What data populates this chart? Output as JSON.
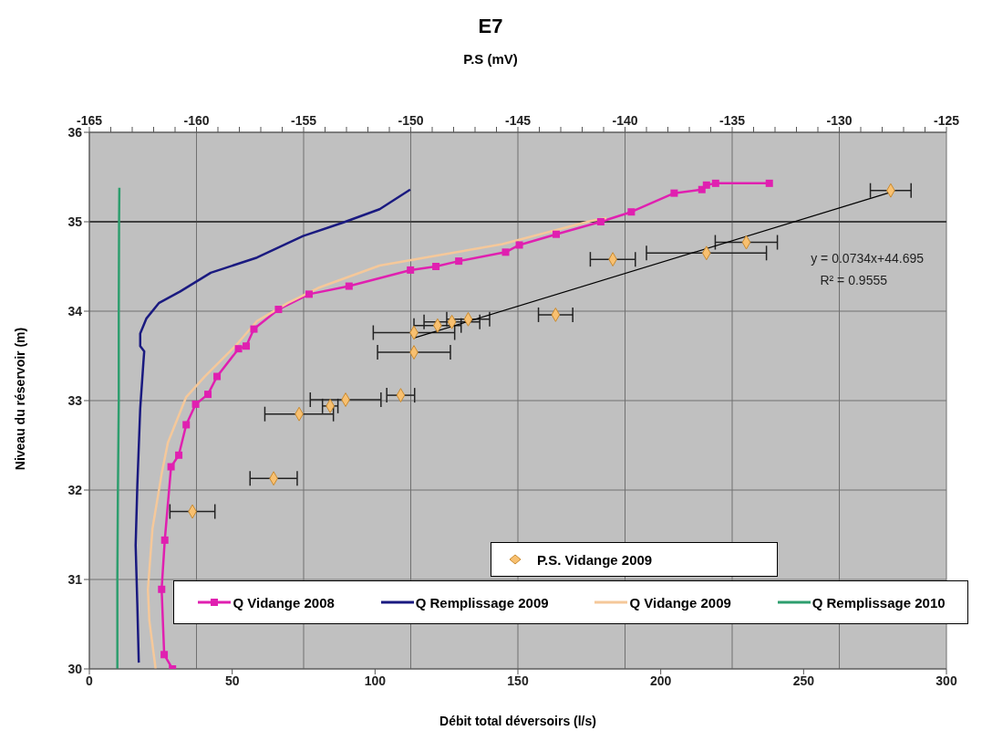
{
  "chart_data": {
    "type": "line",
    "title": "E7",
    "x2label": "P.S (mV)",
    "xlabel": "Débit total déversoirs (l/s)",
    "ylabel": "Niveau du réservoir (m)",
    "xlim": [
      0,
      300
    ],
    "xticks": [
      0,
      50,
      100,
      150,
      200,
      250,
      300
    ],
    "x2lim": [
      -165,
      -125
    ],
    "x2ticks": [
      -165,
      {
        "value": -164,
        "label": null
      },
      {
        "value": -163,
        "label": null
      },
      {
        "value": -162,
        "label": null
      },
      {
        "value": -161,
        "label": null
      },
      -160,
      {
        "value": -159,
        "label": null
      },
      {
        "value": -158,
        "label": null
      },
      {
        "value": -157,
        "label": null
      },
      {
        "value": -156,
        "label": null
      },
      -155,
      {
        "value": -154,
        "label": null
      },
      {
        "value": -153,
        "label": null
      },
      {
        "value": -152,
        "label": null
      },
      {
        "value": -151,
        "label": null
      },
      -150,
      {
        "value": -149,
        "label": null
      },
      {
        "value": -148,
        "label": null
      },
      {
        "value": -147,
        "label": null
      },
      {
        "value": -146,
        "label": null
      },
      -145,
      {
        "value": -144,
        "label": null
      },
      {
        "value": -143,
        "label": null
      },
      {
        "value": -142,
        "label": null
      },
      {
        "value": -141,
        "label": null
      },
      -140,
      {
        "value": -139,
        "label": null
      },
      {
        "value": -138,
        "label": null
      },
      {
        "value": -137,
        "label": null
      },
      {
        "value": -136,
        "label": null
      },
      -135,
      {
        "value": -134,
        "label": null
      },
      {
        "value": -133,
        "label": null
      },
      {
        "value": -132,
        "label": null
      },
      {
        "value": -131,
        "label": null
      },
      -130,
      {
        "value": -129,
        "label": null
      },
      {
        "value": -128,
        "label": null
      },
      {
        "value": -127,
        "label": null
      },
      {
        "value": -126,
        "label": null
      },
      -125
    ],
    "ylim": [
      30,
      36
    ],
    "yticks": [
      30,
      31,
      32,
      33,
      34,
      35,
      36
    ],
    "grid": true,
    "legend": "bottom",
    "ref_lines": [
      {
        "axis": "y",
        "value": 35,
        "color": "#404040"
      }
    ],
    "series": [
      {
        "name": "Q Vidange 2008",
        "color": "#e020b0",
        "marker": "square",
        "x": [
          29.1,
          26.2,
          25.3,
          26.4,
          28.6,
          31.3,
          33.9,
          37.2,
          41.5,
          44.7,
          52.2,
          54.9,
          57.6,
          66.2,
          76.9,
          90.9,
          112.4,
          121.3,
          129.3,
          145.7,
          150.5,
          163.4,
          179,
          189.7,
          204.7,
          214.4,
          216,
          219.2,
          238
        ],
        "values": [
          30.0,
          30.16,
          30.89,
          31.44,
          32.26,
          32.39,
          32.73,
          32.96,
          33.07,
          33.27,
          33.58,
          33.61,
          33.8,
          34.02,
          34.19,
          34.28,
          34.46,
          34.5,
          34.56,
          34.66,
          34.74,
          34.86,
          35.0,
          35.11,
          35.32,
          35.36,
          35.41,
          35.43,
          35.43
        ]
      },
      {
        "name": "Q Remplissage 2009",
        "color": "#1a1a80",
        "marker": "none",
        "x": [
          17.3,
          16.8,
          16.2,
          16.8,
          17.8,
          18.9,
          19.2,
          17.8,
          17.8,
          20.0,
          24.3,
          31.8,
          42.5,
          58.7,
          74.8,
          88.7,
          101.6,
          112.3
        ],
        "values": [
          30.07,
          30.71,
          31.38,
          32.06,
          32.91,
          33.42,
          33.55,
          33.61,
          33.75,
          33.92,
          34.09,
          34.22,
          34.43,
          34.6,
          34.84,
          34.99,
          35.14,
          35.36
        ]
      },
      {
        "name": "Q Vidange 2009",
        "color": "#f5c89a",
        "marker": "none",
        "x": [
          23.2,
          21.0,
          20.5,
          22.1,
          25.3,
          27.5,
          33.9,
          40.4,
          51.1,
          58.7,
          69.4,
          80.1,
          101.6,
          123.1,
          144.6,
          175.7,
          181
        ],
        "values": [
          30.0,
          30.54,
          30.89,
          31.57,
          32.18,
          32.53,
          33.04,
          33.27,
          33.61,
          33.89,
          34.09,
          34.26,
          34.51,
          34.63,
          34.75,
          35.01,
          35.04
        ]
      },
      {
        "name": "Q Remplissage 2010",
        "color": "#2e9e6e",
        "marker": "none",
        "x": [
          9.8,
          9.8,
          10,
          10.3,
          10.3,
          10.4,
          10.5
        ],
        "values": [
          30,
          31,
          32,
          33,
          34,
          35,
          35.38
        ]
      },
      {
        "name": "P.S. Vidange 2009",
        "type": "scatter",
        "axis": "x2",
        "color": "#f8c070",
        "marker": "diamond",
        "x": [
          -149.85,
          -148.75,
          -148.08,
          -147.32,
          -149.85,
          -150.47,
          -153.04,
          -153.76,
          -155.21,
          -156.4,
          -160.19,
          -127.6,
          -134.34,
          -136.2,
          -140.57,
          -143.24
        ],
        "values": [
          33.76,
          33.84,
          33.88,
          33.91,
          33.54,
          33.06,
          33.01,
          32.94,
          32.85,
          32.13,
          31.76,
          35.35,
          34.77,
          34.65,
          34.58,
          33.96
        ],
        "xerrors": [
          1.9,
          1.1,
          1.3,
          1.0,
          1.7,
          0.65,
          1.65,
          0.36,
          1.6,
          1.1,
          1.05,
          0.95,
          1.45,
          2.8,
          1.05,
          0.8
        ]
      },
      {
        "axis": "x2",
        "color": "#000000",
        "marker": "none",
        "x": [
          -149.85,
          -127.6
        ],
        "values": [
          33.7,
          35.33
        ]
      }
    ],
    "annotations": [
      "y = 0.0734x+44.695",
      "R² = 0.9555"
    ]
  }
}
